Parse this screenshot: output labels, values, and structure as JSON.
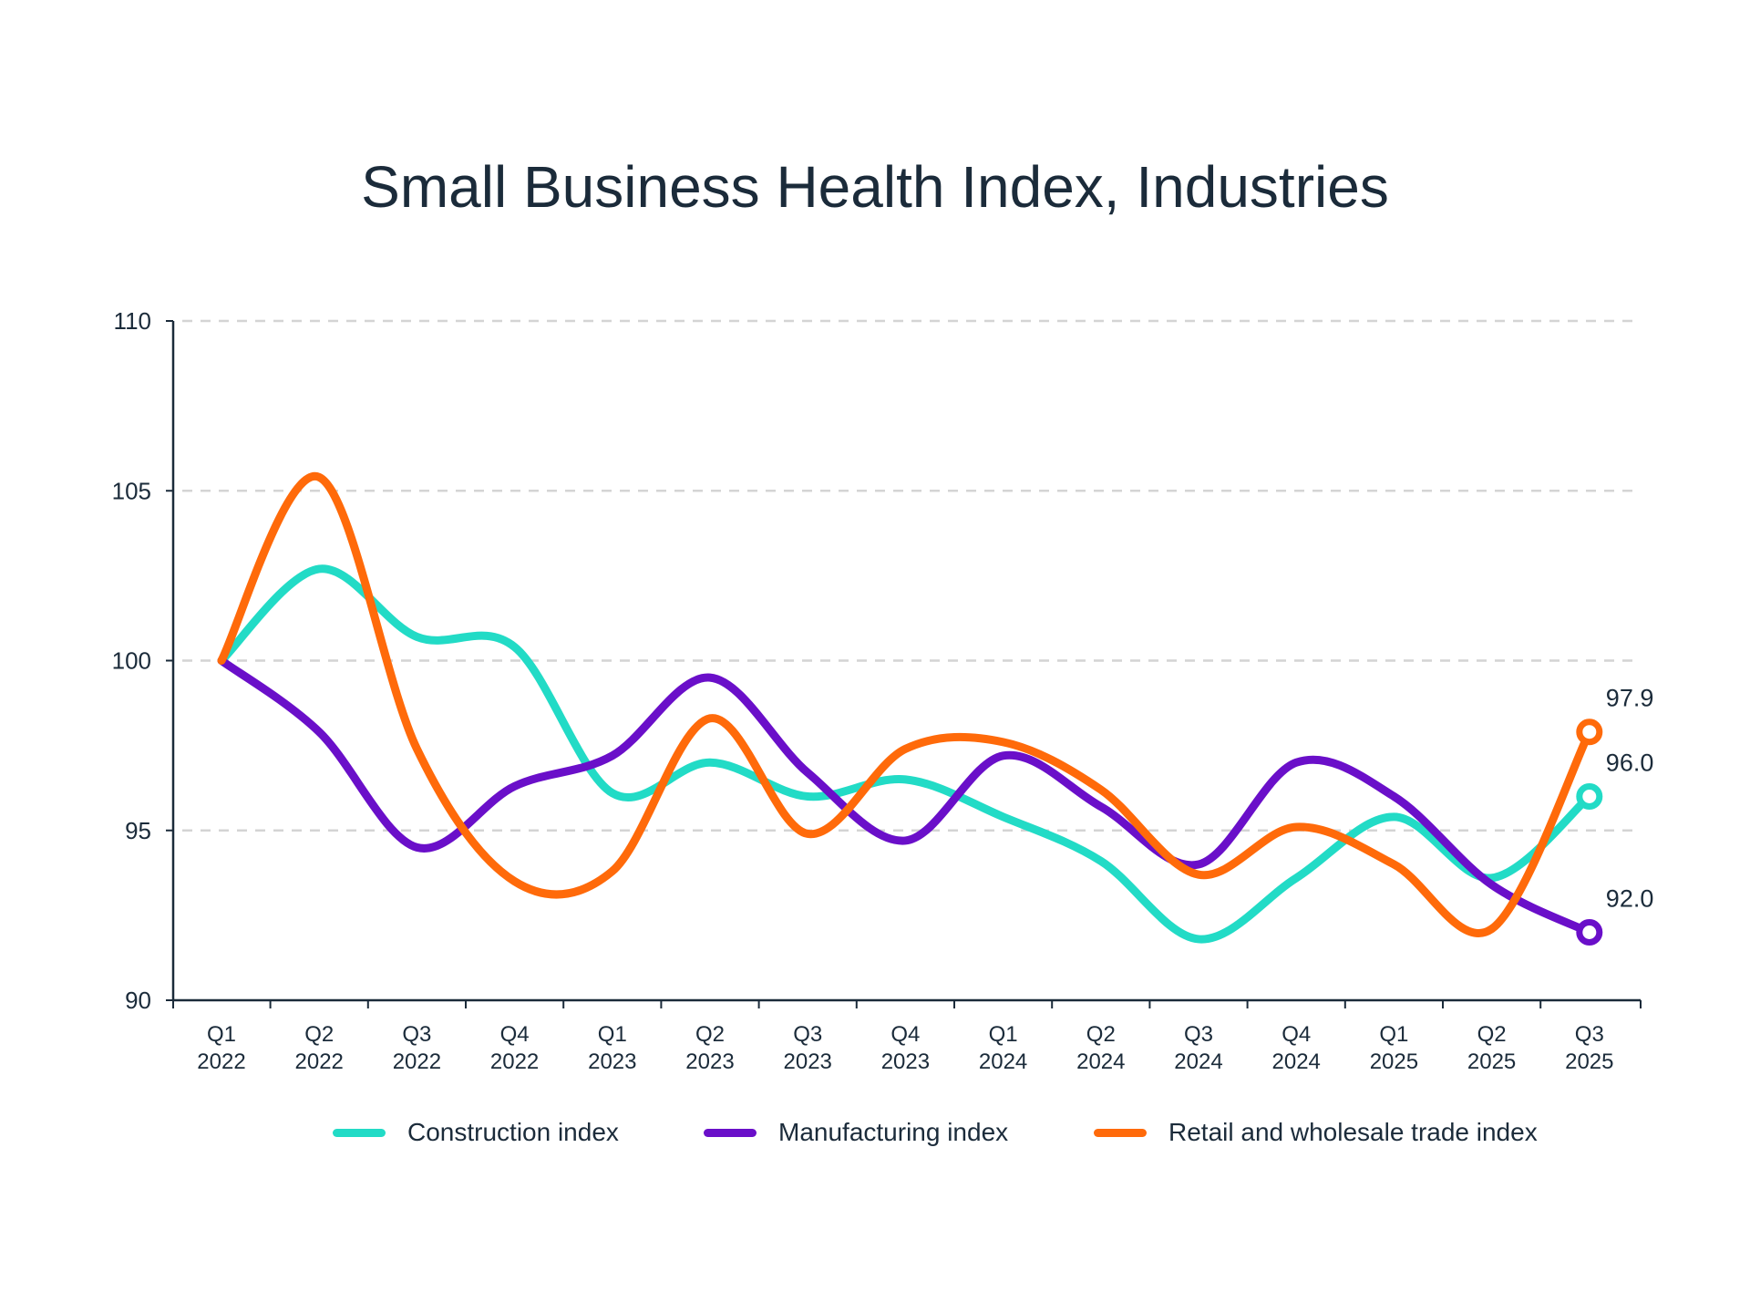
{
  "chart_data": {
    "type": "line",
    "title": "Small Business Health Index, Industries",
    "xlabel": "",
    "ylabel": "",
    "ylim": [
      90,
      110
    ],
    "yticks": [
      "90",
      "95",
      "100",
      "105",
      "110"
    ],
    "categories": [
      [
        "Q1",
        "2022"
      ],
      [
        "Q2",
        "2022"
      ],
      [
        "Q3",
        "2022"
      ],
      [
        "Q4",
        "2022"
      ],
      [
        "Q1",
        "2023"
      ],
      [
        "Q2",
        "2023"
      ],
      [
        "Q3",
        "2023"
      ],
      [
        "Q4",
        "2023"
      ],
      [
        "Q1",
        "2024"
      ],
      [
        "Q2",
        "2024"
      ],
      [
        "Q3",
        "2024"
      ],
      [
        "Q4",
        "2024"
      ],
      [
        "Q1",
        "2025"
      ],
      [
        "Q2",
        "2025"
      ],
      [
        "Q3",
        "2025"
      ]
    ],
    "grid": true,
    "legend": "bottom",
    "series": [
      {
        "name": "Construction index",
        "color": "#22dbc6",
        "values": [
          100,
          102.7,
          100.7,
          100.4,
          96.1,
          97.0,
          96.0,
          96.5,
          95.4,
          94.1,
          91.8,
          93.6,
          95.4,
          93.6,
          96.0
        ],
        "end_label": "96.0"
      },
      {
        "name": "Manufacturing index",
        "color": "#6a0fc9",
        "values": [
          100,
          97.9,
          94.5,
          96.3,
          97.2,
          99.5,
          96.7,
          94.7,
          97.2,
          95.7,
          94.0,
          97.0,
          96.0,
          93.4,
          92.0
        ],
        "end_label": "92.0"
      },
      {
        "name": "Retail and wholesale trade index",
        "color": "#ff6a0a",
        "values": [
          100,
          105.4,
          97.4,
          93.5,
          93.8,
          98.3,
          94.9,
          97.4,
          97.6,
          96.2,
          93.7,
          95.1,
          94.0,
          92.1,
          97.9
        ],
        "end_label": "97.9"
      }
    ]
  }
}
